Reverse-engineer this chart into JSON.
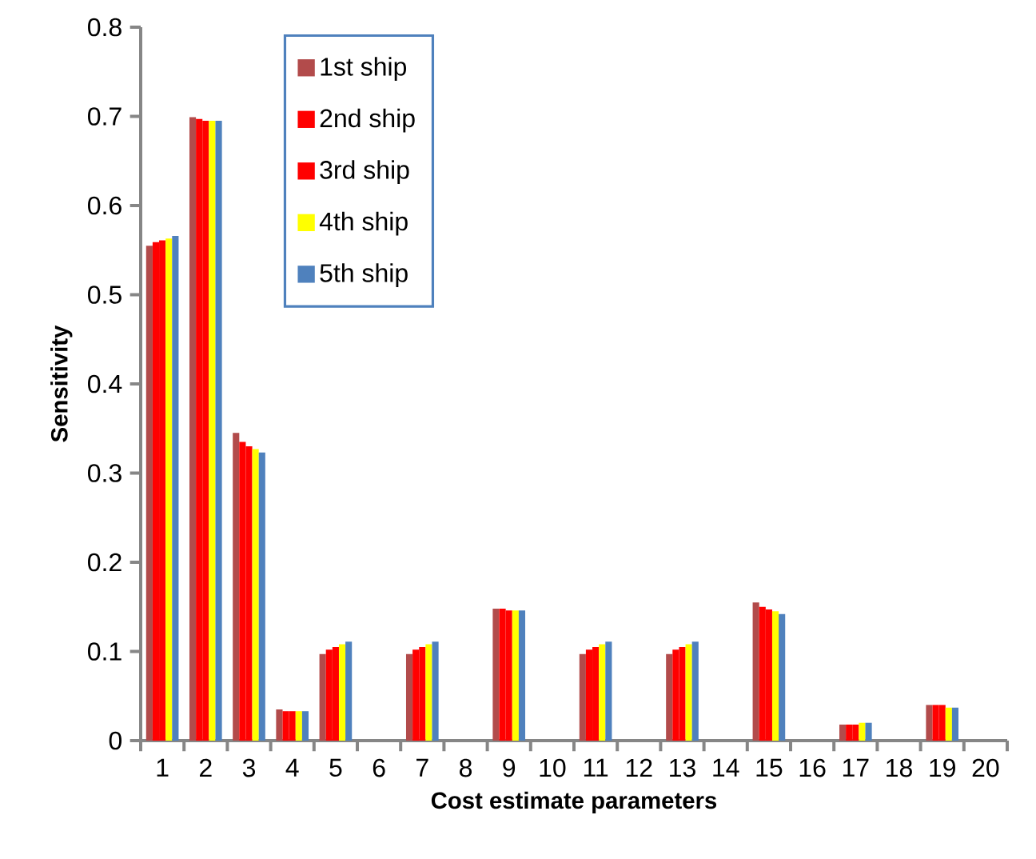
{
  "chart_data": {
    "type": "bar",
    "xlabel": "Cost estimate parameters",
    "ylabel": "Sensitivity",
    "categories": [
      "1",
      "2",
      "3",
      "4",
      "5",
      "6",
      "7",
      "8",
      "9",
      "10",
      "11",
      "12",
      "13",
      "14",
      "15",
      "16",
      "17",
      "18",
      "19",
      "20"
    ],
    "series": [
      {
        "name": "1st ship",
        "color": "#b24b4b",
        "values": [
          0.555,
          0.699,
          0.345,
          0.035,
          0.097,
          null,
          0.097,
          null,
          0.148,
          null,
          0.097,
          null,
          0.097,
          null,
          0.155,
          null,
          0.018,
          null,
          0.04,
          null
        ]
      },
      {
        "name": "2nd ship",
        "color": "#ff0000",
        "values": [
          0.559,
          0.697,
          0.335,
          0.033,
          0.102,
          null,
          0.102,
          null,
          0.148,
          null,
          0.102,
          null,
          0.102,
          null,
          0.15,
          null,
          0.018,
          null,
          0.04,
          null
        ]
      },
      {
        "name": "3rd ship",
        "color": "#ff0000",
        "values": [
          0.561,
          0.695,
          0.33,
          0.033,
          0.105,
          null,
          0.105,
          null,
          0.146,
          null,
          0.105,
          null,
          0.105,
          null,
          0.147,
          null,
          0.018,
          null,
          0.04,
          null
        ]
      },
      {
        "name": "4th ship",
        "color": "#ffff00",
        "values": [
          0.563,
          0.695,
          0.327,
          0.033,
          0.108,
          null,
          0.108,
          null,
          0.146,
          null,
          0.108,
          null,
          0.108,
          null,
          0.145,
          null,
          0.02,
          null,
          0.037,
          null
        ]
      },
      {
        "name": "5th ship",
        "color": "#4f81bd",
        "values": [
          0.566,
          0.695,
          0.323,
          0.033,
          0.111,
          null,
          0.111,
          null,
          0.146,
          null,
          0.111,
          null,
          0.111,
          null,
          0.142,
          null,
          0.02,
          null,
          0.037,
          null
        ]
      }
    ],
    "ylim": [
      0,
      0.8
    ],
    "yticks": [
      0,
      0.1,
      0.2,
      0.3,
      0.4,
      0.5,
      0.6,
      0.7,
      0.8
    ],
    "legend": "top left",
    "grid": false
  }
}
